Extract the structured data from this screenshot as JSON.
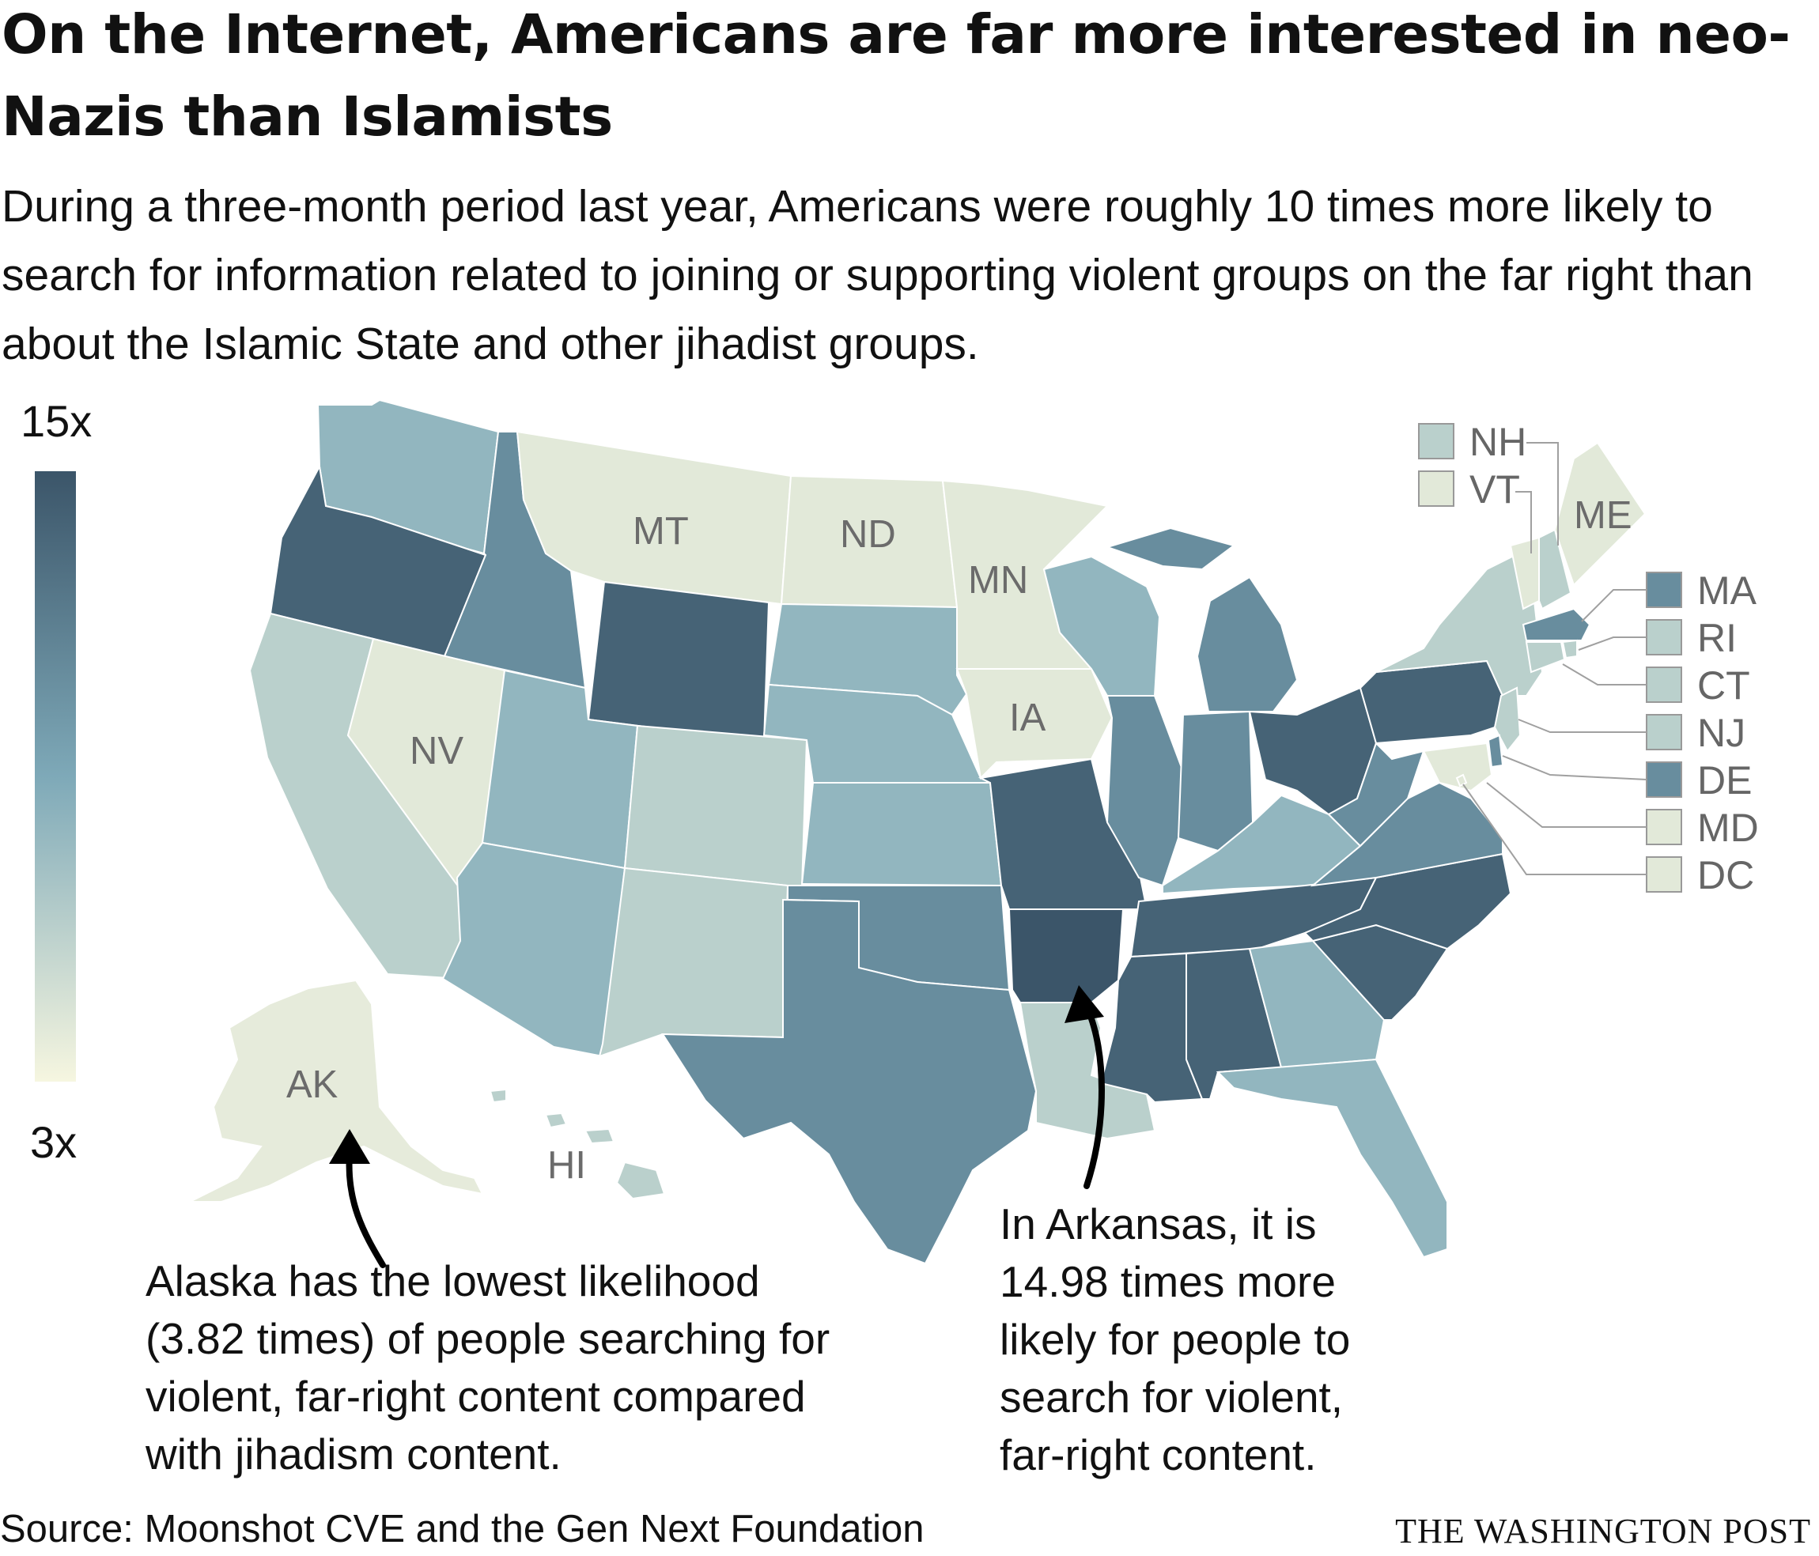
{
  "title": "On the Internet, Americans are far more interested in neo-Nazis than Islamists",
  "subtitle": "During a three-month period last year, Americans were roughly 10 times more likely to search for information related to joining or supporting violent groups on the far right than about the Islamic State and other jihadist groups.",
  "legend": {
    "max_label": "15x",
    "min_label": "3x",
    "max_value": 15,
    "min_value": 3
  },
  "annotations": {
    "alaska": "Alaska has the lowest likelihood (3.82 times) of people searching for violent, far-right content compared with jihadism content.",
    "arkansas": "In Arkansas, it is 14.98 times more likely for people to search for violent, far-right content."
  },
  "source": "Source: Moonshot CVE and the Gen Next Foundation",
  "brand": "THE WASHINGTON POST",
  "colors": {
    "low": "#f6f6e0",
    "mid": "#7ea9b8",
    "high": "#3b5569"
  },
  "map_labels": {
    "MT": "MT",
    "ND": "ND",
    "MN": "MN",
    "NV": "NV",
    "IA": "IA",
    "AK": "AK",
    "HI": "HI",
    "ME": "ME",
    "NH": "NH",
    "VT": "VT",
    "MA": "MA",
    "RI": "RI",
    "CT": "CT",
    "NJ": "NJ",
    "DE": "DE",
    "MD": "MD",
    "DC": "DC"
  },
  "map_data": {
    "type": "choropleth",
    "measure": "times more likely to search for violent far-right content than jihadist content",
    "scale": [
      3,
      15
    ],
    "values": {
      "AK": 3.82,
      "AR": 14.98,
      "WA": 8.0,
      "OR": 14.0,
      "CA": 6.0,
      "ID": 11.0,
      "NV": 4.0,
      "MT": 4.0,
      "WY": 14.0,
      "UT": 8.0,
      "AZ": 8.0,
      "CO": 6.0,
      "NM": 6.0,
      "ND": 4.0,
      "SD": 8.0,
      "NE": 8.0,
      "KS": 8.0,
      "OK": 11.0,
      "TX": 11.0,
      "MN": 4.0,
      "IA": 4.0,
      "MO": 14.0,
      "LA": 6.0,
      "WI": 8.0,
      "IL": 11.0,
      "MI": 11.0,
      "IN": 11.0,
      "KY": 8.0,
      "TN": 14.0,
      "MS": 14.0,
      "AL": 14.0,
      "OH": 14.0,
      "WV": 11.0,
      "VA": 11.0,
      "NC": 14.0,
      "SC": 14.0,
      "GA": 8.0,
      "FL": 8.0,
      "PA": 14.0,
      "NY": 6.0,
      "ME": 4.0,
      "VT": 4.0,
      "NH": 6.0,
      "MA": 11.0,
      "RI": 6.0,
      "CT": 6.0,
      "NJ": 6.0,
      "DE": 11.0,
      "MD": 4.0,
      "DC": 4.0,
      "HI": 6.0
    }
  }
}
